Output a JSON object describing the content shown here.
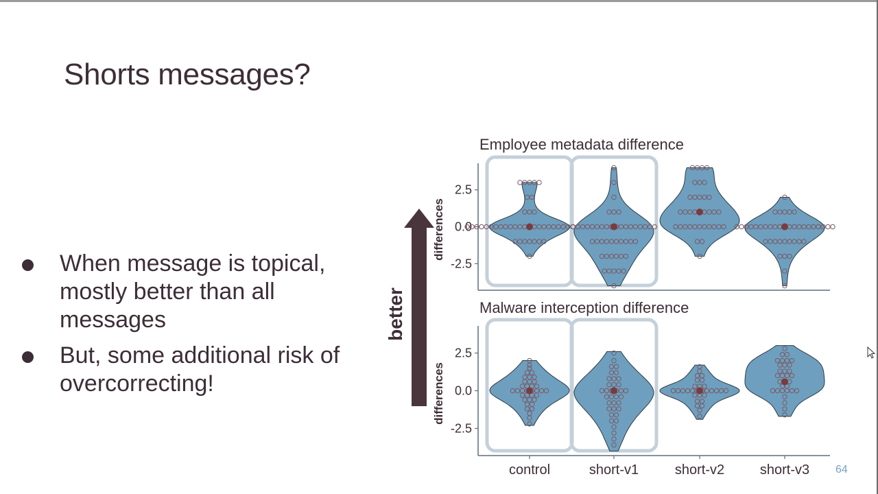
{
  "slide": {
    "title": "Shorts messages?",
    "bullets": [
      "When message is topical, mostly better than all messages",
      "But, some additional risk of overcorrecting!"
    ],
    "page_number": "64"
  },
  "figure": {
    "arrow_label": "better",
    "colors": {
      "violin_fill": "#6e9fbe",
      "highlight_box": "#c4d0da",
      "arrow": "#4a353d",
      "mean_dot": "#7a3b3f",
      "points": "#7a5a66"
    }
  },
  "chart_data": [
    {
      "type": "violin",
      "title": "Employee metadata difference",
      "ylabel": "differences",
      "categories": [
        "control",
        "short-v1",
        "short-v2",
        "short-v3"
      ],
      "ylim": [
        -4.3,
        4.3
      ],
      "yticks": [
        2.5,
        0.0,
        -2.5
      ],
      "ytick_labels": [
        "2.5",
        "0.0",
        "-2.5"
      ],
      "highlighted": [
        "control",
        "short-v1"
      ],
      "series": [
        {
          "category": "control",
          "min": -2,
          "max": 3,
          "mean": 0.0,
          "values": [
            3,
            3,
            3,
            3,
            3,
            2,
            2,
            1,
            1,
            1,
            0,
            0,
            0,
            0,
            0,
            0,
            0,
            0,
            0,
            0,
            0,
            0,
            0,
            0,
            0,
            0,
            0,
            0,
            0,
            0,
            0,
            0,
            0,
            0,
            0,
            0,
            0,
            -1,
            -1,
            -1,
            -1,
            -1,
            -1,
            -1,
            -2
          ]
        },
        {
          "category": "short-v1",
          "min": -4,
          "max": 4,
          "mean": 0.0,
          "values": [
            4,
            3,
            2,
            1,
            1,
            1,
            0,
            0,
            0,
            0,
            0,
            0,
            0,
            0,
            0,
            0,
            0,
            0,
            0,
            0,
            0,
            0,
            0,
            0,
            -1,
            -1,
            -1,
            -1,
            -1,
            -1,
            -1,
            -1,
            -1,
            -1,
            -2,
            -2,
            -2,
            -2,
            -2,
            -2,
            -3,
            -3,
            -3,
            -3,
            -3,
            -4
          ]
        },
        {
          "category": "short-v2",
          "min": -2,
          "max": 4,
          "mean": 1.0,
          "values": [
            4,
            4,
            4,
            4,
            3,
            3,
            3,
            2,
            2,
            2,
            2,
            2,
            1,
            1,
            1,
            1,
            1,
            1,
            1,
            1,
            1,
            0,
            0,
            0,
            0,
            0,
            0,
            0,
            0,
            0,
            0,
            0,
            -1,
            -1,
            -2
          ]
        },
        {
          "category": "short-v3",
          "min": -4,
          "max": 2,
          "mean": 0.0,
          "values": [
            2,
            1,
            1,
            1,
            1,
            1,
            0,
            0,
            0,
            0,
            0,
            0,
            0,
            0,
            0,
            0,
            0,
            0,
            0,
            0,
            0,
            0,
            0,
            0,
            0,
            0,
            0,
            -1,
            -1,
            -1,
            -1,
            -1,
            -1,
            -1,
            -1,
            -1,
            -2,
            -2,
            -2,
            -3,
            -4
          ]
        }
      ]
    },
    {
      "type": "violin",
      "title": "Malware interception difference",
      "xlabel": "",
      "ylabel": "differences",
      "categories": [
        "control",
        "short-v1",
        "short-v2",
        "short-v3"
      ],
      "ylim": [
        -4.3,
        4.3
      ],
      "yticks": [
        2.5,
        0.0,
        -2.5
      ],
      "ytick_labels": [
        "2.5",
        "0.0",
        "-2.5"
      ],
      "highlighted": [
        "control",
        "short-v1"
      ],
      "series": [
        {
          "category": "control",
          "min": -2.3,
          "max": 2.0,
          "mean": 0.0,
          "values": [
            2.0,
            1.7,
            1.5,
            1.2,
            1.2,
            0.9,
            0.9,
            0.9,
            0.6,
            0.6,
            0.6,
            0.3,
            0.3,
            0.3,
            0.3,
            0,
            0,
            0,
            0,
            0,
            0,
            0,
            0,
            -0.3,
            -0.3,
            -0.3,
            -0.3,
            -0.6,
            -0.6,
            -0.6,
            -0.9,
            -0.9,
            -1.2,
            -1.2,
            -1.5,
            -1.8,
            -2.2
          ]
        },
        {
          "category": "short-v1",
          "min": -4.0,
          "max": 2.6,
          "mean": 0.0,
          "values": [
            2.5,
            2.0,
            1.6,
            1.6,
            1.2,
            1.2,
            0.8,
            0.8,
            0.8,
            0.4,
            0.4,
            0.4,
            0,
            0,
            0,
            0,
            0,
            0,
            -0.4,
            -0.4,
            -0.4,
            -0.4,
            -0.8,
            -0.8,
            -0.8,
            -1.2,
            -1.2,
            -1.2,
            -1.6,
            -1.6,
            -2.0,
            -2.0,
            -2.4,
            -2.8,
            -3.2,
            -3.6
          ]
        },
        {
          "category": "short-v2",
          "min": -1.9,
          "max": 1.7,
          "mean": 0.0,
          "values": [
            1.6,
            1.3,
            1.0,
            1.0,
            0.7,
            0.7,
            0.3,
            0.3,
            0.3,
            0,
            0,
            0,
            0,
            0,
            0,
            0,
            0,
            0,
            0,
            0,
            0,
            -0.3,
            -0.3,
            -0.3,
            -0.7,
            -0.7,
            -1.0,
            -1.0,
            -1.3,
            -1.7
          ]
        },
        {
          "category": "short-v3",
          "min": -1.7,
          "max": 3.0,
          "mean": 0.6,
          "values": [
            2.8,
            2.4,
            2.4,
            2.0,
            2.0,
            2.0,
            2.0,
            1.7,
            1.7,
            1.7,
            1.3,
            1.3,
            1.3,
            1.0,
            1.0,
            1.0,
            1.0,
            0.6,
            0.6,
            0.6,
            0.3,
            0.3,
            0,
            0,
            0,
            0,
            0,
            0,
            -0.4,
            -0.8,
            -1.2,
            -1.6
          ]
        }
      ]
    }
  ]
}
